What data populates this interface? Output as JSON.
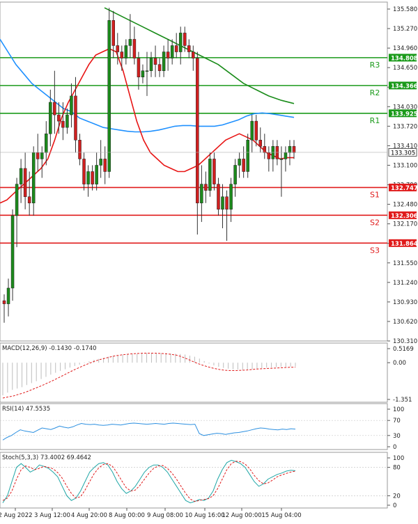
{
  "chart_data": {
    "type": "candlestick",
    "main": {
      "ylim": [
        130.31,
        135.58
      ],
      "y_ticks": [
        "135.580",
        "135.270",
        "134.960",
        "134.650",
        "134.340",
        "134.030",
        "133.720",
        "133.410",
        "133.100",
        "132.790",
        "132.480",
        "132.170",
        "131.860",
        "131.550",
        "131.240",
        "130.930",
        "130.620",
        "130.310"
      ],
      "current_price": "133.305",
      "levels": [
        {
          "name": "R3",
          "value": "134.808",
          "kind": "resistance"
        },
        {
          "name": "R2",
          "value": "134.366",
          "kind": "resistance"
        },
        {
          "name": "R1",
          "value": "133.925",
          "kind": "resistance"
        },
        {
          "name": "S1",
          "value": "132.747",
          "kind": "support"
        },
        {
          "name": "S2",
          "value": "132.306",
          "kind": "support"
        },
        {
          "name": "S3",
          "value": "131.864",
          "kind": "support"
        }
      ],
      "candles": [
        [
          130.95,
          131.05,
          130.6,
          130.9
        ],
        [
          130.9,
          131.3,
          130.7,
          131.15
        ],
        [
          131.15,
          132.4,
          130.95,
          132.3
        ],
        [
          132.3,
          132.9,
          131.8,
          132.8
        ],
        [
          132.8,
          133.2,
          132.5,
          133.05
        ],
        [
          133.05,
          133.3,
          132.4,
          132.6
        ],
        [
          132.6,
          133.0,
          132.3,
          132.5
        ],
        [
          132.5,
          133.4,
          132.3,
          133.3
        ],
        [
          133.3,
          133.6,
          133.0,
          133.2
        ],
        [
          133.2,
          133.4,
          132.9,
          133.3
        ],
        [
          133.3,
          133.8,
          133.1,
          133.6
        ],
        [
          133.6,
          134.3,
          133.4,
          134.1
        ],
        [
          134.1,
          134.6,
          133.6,
          133.9
        ],
        [
          133.9,
          134.1,
          133.6,
          133.8
        ],
        [
          133.8,
          134.1,
          133.5,
          133.7
        ],
        [
          133.7,
          134.0,
          133.6,
          133.9
        ],
        [
          133.9,
          134.4,
          133.7,
          134.2
        ],
        [
          134.2,
          134.5,
          133.3,
          133.5
        ],
        [
          133.5,
          133.6,
          133.1,
          133.2
        ],
        [
          133.2,
          133.3,
          132.7,
          132.8
        ],
        [
          132.8,
          133.1,
          132.6,
          133.0
        ],
        [
          133.0,
          133.1,
          132.7,
          132.8
        ],
        [
          132.8,
          133.3,
          132.7,
          133.1
        ],
        [
          133.1,
          133.5,
          132.9,
          133.2
        ],
        [
          133.2,
          133.4,
          132.8,
          133.0
        ],
        [
          133.0,
          135.6,
          132.9,
          135.4
        ],
        [
          135.4,
          135.55,
          134.8,
          135.0
        ],
        [
          135.0,
          135.2,
          134.7,
          134.9
        ],
        [
          134.9,
          135.0,
          134.6,
          134.8
        ],
        [
          134.8,
          135.1,
          134.7,
          135.0
        ],
        [
          135.0,
          135.5,
          134.8,
          135.1
        ],
        [
          135.1,
          135.3,
          134.7,
          134.8
        ],
        [
          134.8,
          134.9,
          134.3,
          134.5
        ],
        [
          134.5,
          134.7,
          134.4,
          134.6
        ],
        [
          134.6,
          134.9,
          134.2,
          134.6
        ],
        [
          134.6,
          134.9,
          134.5,
          134.8
        ],
        [
          134.8,
          135.0,
          134.5,
          134.7
        ],
        [
          134.7,
          134.8,
          134.5,
          134.6
        ],
        [
          134.6,
          135.0,
          134.5,
          134.9
        ],
        [
          134.9,
          135.1,
          134.6,
          134.8
        ],
        [
          134.8,
          135.1,
          134.7,
          135.0
        ],
        [
          135.0,
          135.2,
          134.8,
          134.9
        ],
        [
          134.9,
          135.3,
          134.7,
          135.2
        ],
        [
          135.2,
          135.3,
          134.9,
          135.0
        ],
        [
          135.0,
          135.1,
          134.8,
          134.9
        ],
        [
          134.9,
          135.0,
          134.6,
          134.8
        ],
        [
          134.8,
          134.9,
          132.0,
          132.5
        ],
        [
          132.5,
          133.1,
          132.2,
          132.8
        ],
        [
          132.8,
          133.0,
          132.5,
          132.7
        ],
        [
          132.7,
          133.3,
          132.6,
          133.2
        ],
        [
          133.2,
          133.3,
          132.7,
          132.8
        ],
        [
          132.8,
          132.9,
          132.3,
          132.4
        ],
        [
          132.4,
          132.8,
          132.1,
          132.6
        ],
        [
          132.6,
          132.7,
          131.9,
          132.4
        ],
        [
          132.4,
          132.9,
          132.2,
          132.8
        ],
        [
          132.8,
          133.2,
          132.6,
          133.1
        ],
        [
          133.1,
          133.3,
          132.9,
          133.2
        ],
        [
          133.2,
          133.4,
          132.9,
          133.0
        ],
        [
          133.0,
          133.6,
          132.9,
          133.5
        ],
        [
          133.5,
          133.9,
          133.3,
          133.8
        ],
        [
          133.8,
          133.9,
          133.4,
          133.5
        ],
        [
          133.5,
          133.7,
          133.3,
          133.4
        ],
        [
          133.4,
          133.6,
          133.2,
          133.3
        ],
        [
          133.3,
          133.4,
          133.0,
          133.2
        ],
        [
          133.2,
          133.5,
          133.0,
          133.4
        ],
        [
          133.4,
          133.5,
          133.1,
          133.2
        ],
        [
          133.2,
          133.4,
          132.6,
          133.2
        ],
        [
          133.2,
          133.4,
          133.0,
          133.3
        ],
        [
          133.3,
          133.5,
          133.1,
          133.4
        ],
        [
          133.4,
          133.5,
          133.2,
          133.3
        ]
      ],
      "series": [
        {
          "name": "",
          "color": "#1e90ff",
          "values": [
            135.1,
            134.9,
            134.7,
            134.55,
            134.4,
            134.3,
            134.2,
            134.1,
            134.0,
            133.95,
            133.85,
            133.8,
            133.75,
            133.7,
            133.68,
            133.66,
            133.64,
            133.63,
            133.63,
            133.64,
            133.66,
            133.69,
            133.72,
            133.73,
            133.73,
            133.72,
            133.72,
            133.72,
            133.74,
            133.78,
            133.82,
            133.88,
            133.92,
            133.93,
            133.92,
            133.9,
            133.88,
            133.86
          ]
        },
        {
          "name": "",
          "color": "#e81414",
          "values": [
            132.5,
            132.55,
            132.65,
            132.75,
            132.85,
            132.95,
            133.05,
            133.2,
            133.5,
            133.85,
            134.1,
            134.3,
            134.5,
            134.7,
            134.85,
            134.9,
            134.95,
            134.9,
            134.6,
            134.2,
            133.8,
            133.5,
            133.3,
            133.2,
            133.1,
            133.05,
            133.0,
            133.0,
            133.05,
            133.1,
            133.2,
            133.3,
            133.4,
            133.5,
            133.55,
            133.6,
            133.55,
            133.5,
            133.4,
            133.3,
            133.25,
            133.2,
            133.22,
            133.22
          ]
        },
        {
          "name": "",
          "color": "#1a8c1a",
          "values": [
            135.6,
            135.5,
            135.4,
            135.3,
            135.2,
            135.1,
            135.0,
            134.9,
            134.8,
            134.7,
            134.55,
            134.4,
            134.3,
            134.2,
            134.13,
            134.08
          ]
        }
      ]
    },
    "x_ticks": [
      "2 Aug 2022",
      "3 Aug 12:00",
      "4 Aug 20:00",
      "8 Aug 00:00",
      "9 Aug 08:00",
      "10 Aug 16:00",
      "12 Aug 00:00",
      "15 Aug 04:00"
    ],
    "macd": {
      "label": "MACD(12,26,9) -0.1430 -0.1740",
      "y_ticks": [
        "0.5169",
        "0.00",
        "-1.351"
      ],
      "ylim": [
        -1.351,
        0.5169
      ],
      "histogram": [
        -1.2,
        -1.1,
        -1.0,
        -0.95,
        -0.9,
        -0.82,
        -0.75,
        -0.68,
        -0.6,
        -0.52,
        -0.44,
        -0.37,
        -0.3,
        -0.24,
        -0.18,
        -0.12,
        -0.07,
        -0.02,
        0.05,
        0.1,
        0.14,
        0.18,
        0.22,
        0.26,
        0.28,
        0.3,
        0.32,
        0.33,
        0.33,
        0.34,
        0.35,
        0.35,
        0.35,
        0.35,
        0.35,
        0.34,
        0.33,
        0.32,
        0.3,
        0.26,
        0.22,
        0.15,
        0.06,
        -0.03,
        -0.1,
        -0.15,
        -0.19,
        -0.22,
        -0.24,
        -0.25,
        -0.26,
        -0.25,
        -0.24,
        -0.22,
        -0.2,
        -0.18,
        -0.17,
        -0.16,
        -0.15,
        -0.15,
        -0.14,
        -0.14
      ],
      "signal": [
        -1.3,
        -1.26,
        -1.22,
        -1.16,
        -1.1,
        -1.02,
        -0.94,
        -0.86,
        -0.77,
        -0.68,
        -0.58,
        -0.48,
        -0.38,
        -0.28,
        -0.19,
        -0.1,
        -0.02,
        0.06,
        0.12,
        0.17,
        0.22,
        0.26,
        0.29,
        0.31,
        0.33,
        0.34,
        0.35,
        0.35,
        0.35,
        0.34,
        0.33,
        0.31,
        0.28,
        0.22,
        0.14,
        0.05,
        -0.03,
        -0.1,
        -0.16,
        -0.21,
        -0.25,
        -0.28,
        -0.29,
        -0.29,
        -0.28,
        -0.27,
        -0.25,
        -0.23,
        -0.22,
        -0.21,
        -0.2,
        -0.19,
        -0.18,
        -0.17,
        -0.17
      ]
    },
    "rsi": {
      "label": "RSI(14) 47.5535",
      "y_ticks": [
        "100",
        "70",
        "30",
        "0"
      ],
      "ylim": [
        0,
        100
      ],
      "values": [
        18,
        25,
        30,
        38,
        45,
        42,
        40,
        38,
        44,
        50,
        48,
        46,
        50,
        55,
        52,
        50,
        53,
        58,
        62,
        60,
        59,
        60,
        58,
        57,
        58,
        60,
        59,
        58,
        60,
        62,
        63,
        62,
        61,
        60,
        61,
        62,
        61,
        60,
        62,
        63,
        62,
        61,
        60,
        59,
        60,
        35,
        30,
        32,
        34,
        36,
        35,
        33,
        35,
        37,
        38,
        40,
        42,
        45,
        48,
        50,
        49,
        47,
        46,
        45,
        47,
        46,
        48,
        47
      ]
    },
    "stoch": {
      "label": "Stoch(5,3,3) 73.4002 69.4642",
      "y_ticks": [
        "100",
        "80",
        "20",
        "0"
      ],
      "ylim": [
        0,
        100
      ],
      "k": [
        5,
        20,
        50,
        80,
        88,
        80,
        70,
        75,
        85,
        82,
        78,
        70,
        60,
        40,
        20,
        10,
        15,
        30,
        50,
        70,
        80,
        88,
        90,
        85,
        70,
        50,
        35,
        25,
        30,
        40,
        55,
        70,
        80,
        85,
        85,
        80,
        70,
        55,
        40,
        25,
        10,
        5,
        8,
        12,
        10,
        15,
        30,
        55,
        75,
        90,
        95,
        92,
        88,
        80,
        65,
        50,
        40,
        45,
        55,
        60,
        65,
        68,
        72,
        74,
        73
      ],
      "d": [
        10,
        15,
        30,
        55,
        75,
        83,
        80,
        75,
        78,
        82,
        80,
        77,
        69,
        57,
        40,
        25,
        15,
        18,
        32,
        50,
        67,
        79,
        86,
        88,
        82,
        68,
        52,
        37,
        30,
        32,
        42,
        55,
        68,
        78,
        83,
        84,
        78,
        68,
        55,
        40,
        25,
        13,
        8,
        10,
        12,
        14,
        20,
        35,
        55,
        75,
        88,
        93,
        92,
        87,
        77,
        63,
        52,
        45,
        47,
        53,
        60,
        64,
        67,
        70,
        72
      ]
    }
  }
}
